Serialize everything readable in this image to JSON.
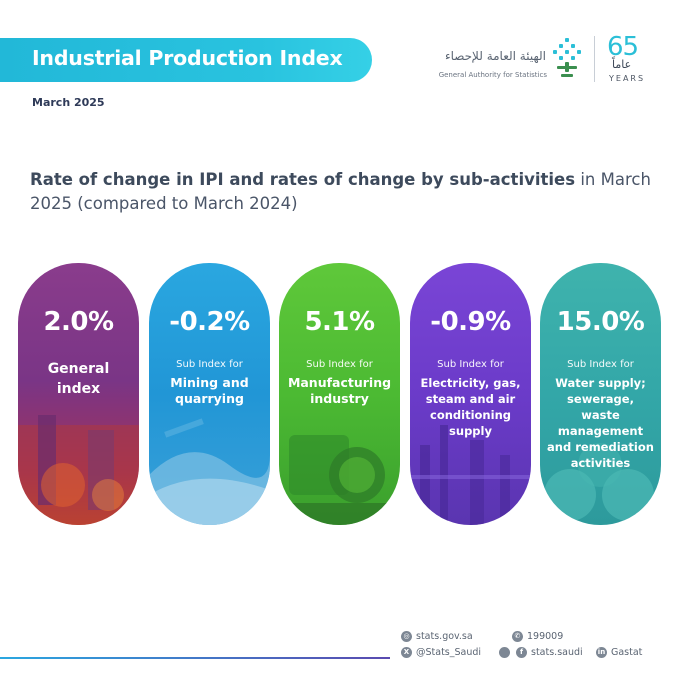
{
  "header": {
    "title": "Industrial Production Index",
    "date": "March 2025",
    "org_name_ar": "الهيئة العامة للإحصاء",
    "org_name_en": "General Authority for Statistics",
    "anniversary_num": "65",
    "anniversary_ar": "عاماً",
    "anniversary_en": "YEARS"
  },
  "heading": {
    "bold": "Rate of change in IPI and rates of change by sub-activities",
    "rest": " in March 2025 (compared to March 2024)"
  },
  "chart_data": {
    "type": "table",
    "title": "Rate of change in IPI and rates of change by sub-activities in March 2025 (compared to March 2024)",
    "categories": [
      "General index",
      "Mining and quarrying",
      "Manufacturing industry",
      "Electricity, gas, steam and air conditioning supply",
      "Water supply; sewerage, waste management and remediation activities"
    ],
    "values": [
      2.0,
      -0.2,
      5.1,
      -0.9,
      15.0
    ],
    "unit": "%",
    "items": [
      {
        "value": "2.0%",
        "sublabel": "",
        "label": "General index",
        "color": "#7a3586"
      },
      {
        "value": "-0.2%",
        "sublabel": "Sub Index for",
        "label": "Mining and quarrying",
        "color": "#2196d6"
      },
      {
        "value": "5.1%",
        "sublabel": "Sub Index for",
        "label": "Manufacturing industry",
        "color": "#4cba33"
      },
      {
        "value": "-0.9%",
        "sublabel": "Sub Index for",
        "label": "Electricity, gas, steam and air conditioning supply",
        "color": "#6b3bc9"
      },
      {
        "value": "15.0%",
        "sublabel": "Sub Index for",
        "label": "Water supply; sewerage, waste management and remediation activities",
        "color": "#33a7a8"
      }
    ]
  },
  "footer": {
    "website": "stats.gov.sa",
    "phone": "199009",
    "twitter": "@Stats_Saudi",
    "facebook": "stats.saudi",
    "linkedin": "Gastat"
  },
  "colors": {
    "banner": "#29c3df",
    "heading": "#3d4a5c",
    "footer_icon": "#7d8794"
  }
}
